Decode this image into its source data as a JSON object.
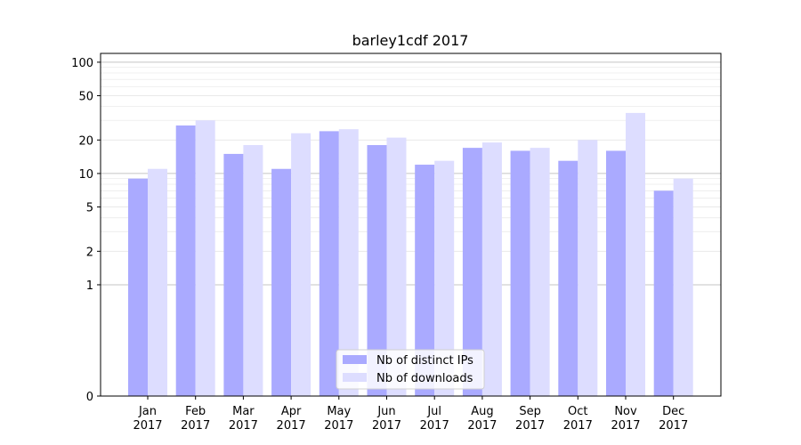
{
  "chart_data": {
    "type": "bar",
    "title": "barley1cdf 2017",
    "xlabel": "",
    "ylabel": "",
    "yscale": "symlog",
    "ylim": [
      0,
      120
    ],
    "yticks": [
      0,
      1,
      2,
      5,
      10,
      20,
      50,
      100
    ],
    "categories": [
      [
        "Jan",
        "2017"
      ],
      [
        "Feb",
        "2017"
      ],
      [
        "Mar",
        "2017"
      ],
      [
        "Apr",
        "2017"
      ],
      [
        "May",
        "2017"
      ],
      [
        "Jun",
        "2017"
      ],
      [
        "Jul",
        "2017"
      ],
      [
        "Aug",
        "2017"
      ],
      [
        "Sep",
        "2017"
      ],
      [
        "Oct",
        "2017"
      ],
      [
        "Nov",
        "2017"
      ],
      [
        "Dec",
        "2017"
      ]
    ],
    "series": [
      {
        "name": "Nb of distinct IPs",
        "color": "#aaaaff",
        "values": [
          9,
          27,
          15,
          11,
          24,
          18,
          12,
          17,
          16,
          13,
          16,
          7
        ]
      },
      {
        "name": "Nb of downloads",
        "color": "#ddddff",
        "values": [
          11,
          30,
          18,
          23,
          25,
          21,
          13,
          19,
          17,
          20,
          35,
          9
        ]
      }
    ],
    "grid": true,
    "legend_position": "bottom-center"
  }
}
